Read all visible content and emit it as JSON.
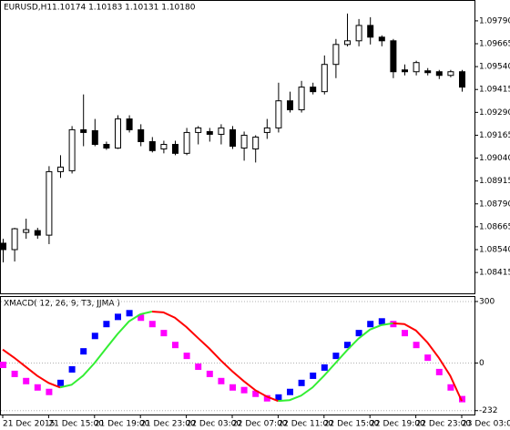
{
  "chart_data": [
    {
      "type": "candlestick",
      "title": "EURUSD,H1",
      "subtitle": "1.10174 1.10183 1.10131 1.10180",
      "open": [
        1.08575,
        1.0854,
        1.08634,
        1.08644,
        1.08619,
        1.08966,
        1.08971,
        1.09195,
        1.0919,
        1.09115,
        1.09095,
        1.09254,
        1.09195,
        1.0913,
        1.0909,
        1.09115,
        1.09066,
        1.0918,
        1.09185,
        1.0917,
        1.09195,
        1.09095,
        1.0909,
        1.0918,
        1.09205,
        1.09353,
        1.09304,
        1.09428,
        1.09403,
        1.09552,
        1.09661,
        1.09681,
        1.09765,
        1.09701,
        1.09681,
        1.09522,
        1.09512,
        1.09517,
        1.09512,
        1.09492,
        1.09512
      ],
      "high": [
        1.08599,
        1.08659,
        1.08709,
        1.08659,
        1.08996,
        1.09056,
        1.09215,
        1.09388,
        1.09254,
        1.0913,
        1.09274,
        1.09274,
        1.09225,
        1.09155,
        1.09135,
        1.09135,
        1.09205,
        1.09215,
        1.09205,
        1.09225,
        1.09215,
        1.09185,
        1.09165,
        1.09254,
        1.09452,
        1.09403,
        1.09462,
        1.09452,
        1.09601,
        1.09691,
        1.0983,
        1.098,
        1.0981,
        1.09711,
        1.09691,
        1.09552,
        1.09572,
        1.09532,
        1.09522,
        1.09522,
        1.09522
      ],
      "low": [
        1.0847,
        1.08475,
        1.08599,
        1.08599,
        1.0857,
        1.08932,
        1.08956,
        1.09105,
        1.09105,
        1.09085,
        1.0909,
        1.0918,
        1.09105,
        1.09071,
        1.09066,
        1.09056,
        1.09056,
        1.09115,
        1.0913,
        1.09115,
        1.0909,
        1.09026,
        1.09016,
        1.09145,
        1.0918,
        1.09289,
        1.09289,
        1.09388,
        1.09388,
        1.09477,
        1.09651,
        1.09651,
        1.09661,
        1.09651,
        1.09477,
        1.09492,
        1.09492,
        1.09492,
        1.09472,
        1.09482,
        1.09403
      ],
      "close": [
        1.0854,
        1.08654,
        1.08649,
        1.08619,
        1.08966,
        1.08991,
        1.09195,
        1.0918,
        1.09115,
        1.09095,
        1.09254,
        1.09195,
        1.0913,
        1.09081,
        1.09115,
        1.09066,
        1.0918,
        1.09205,
        1.0917,
        1.09205,
        1.09105,
        1.09165,
        1.09155,
        1.09205,
        1.09353,
        1.09304,
        1.09428,
        1.09403,
        1.09552,
        1.09661,
        1.09681,
        1.09765,
        1.09701,
        1.09681,
        1.09512,
        1.09512,
        1.09562,
        1.09507,
        1.09492,
        1.09512,
        1.09428
      ],
      "up_color": "#ffffff",
      "down_color": "#000000",
      "ylim": [
        1.08301,
        1.09899
      ],
      "yticks": [
        {
          "value": 1.0979,
          "label": "1.09790"
        },
        {
          "value": 1.09665,
          "label": "1.09665"
        },
        {
          "value": 1.0954,
          "label": "1.09540"
        },
        {
          "value": 1.09415,
          "label": "1.09415"
        },
        {
          "value": 1.0929,
          "label": "1.09290"
        },
        {
          "value": 1.09165,
          "label": "1.09165"
        },
        {
          "value": 1.0904,
          "label": "1.09040"
        },
        {
          "value": 1.08915,
          "label": "1.08915"
        },
        {
          "value": 1.0879,
          "label": "1.08790"
        },
        {
          "value": 1.08665,
          "label": "1.08665"
        },
        {
          "value": 1.0854,
          "label": "1.08540"
        },
        {
          "value": 1.08415,
          "label": "1.08415"
        }
      ],
      "grid": false
    },
    {
      "type": "histogram-line",
      "title": "XMACD( 12, 26, 9, T3, JJMA )",
      "categories": [
        "21 Dec 2015",
        null,
        null,
        null,
        "21 Dec 15:00",
        null,
        null,
        null,
        "21 Dec 19:00",
        null,
        null,
        null,
        "21 Dec 23:00",
        null,
        null,
        null,
        "22 Dec 03:00",
        null,
        null,
        null,
        "22 Dec 07:00",
        null,
        null,
        null,
        "22 Dec 11:00",
        null,
        null,
        null,
        "22 Dec 15:00",
        null,
        null,
        null,
        "22 Dec 19:00",
        null,
        null,
        null,
        "22 Dec 23:00",
        null,
        null,
        null,
        "23 Dec 03:00"
      ],
      "values": [
        -9,
        -53,
        -88,
        -119,
        -141,
        -97,
        -31,
        57,
        132,
        190,
        225,
        243,
        221,
        190,
        146,
        88,
        35,
        -18,
        -53,
        -88,
        -119,
        -132,
        -150,
        -172,
        -168,
        -141,
        -97,
        -62,
        -22,
        35,
        88,
        146,
        190,
        203,
        190,
        146,
        88,
        26,
        -44,
        -119,
        -176
      ],
      "colors": [
        "#ff00ff",
        "#ff00ff",
        "#ff00ff",
        "#ff00ff",
        "#ff00ff",
        "#0000ff",
        "#0000ff",
        "#0000ff",
        "#0000ff",
        "#0000ff",
        "#0000ff",
        "#0000ff",
        "#ff00ff",
        "#ff00ff",
        "#ff00ff",
        "#ff00ff",
        "#ff00ff",
        "#ff00ff",
        "#ff00ff",
        "#ff00ff",
        "#ff00ff",
        "#ff00ff",
        "#ff00ff",
        "#ff00ff",
        "#0000ff",
        "#0000ff",
        "#0000ff",
        "#0000ff",
        "#0000ff",
        "#0000ff",
        "#0000ff",
        "#0000ff",
        "#0000ff",
        "#0000ff",
        "#ff00ff",
        "#ff00ff",
        "#ff00ff",
        "#ff00ff",
        "#ff00ff",
        "#ff00ff",
        "#ff00ff"
      ],
      "series": [
        {
          "color": "#ff0000",
          "values": [
            66,
            26,
            -18,
            -62,
            -97,
            -119,
            null,
            null,
            null,
            null,
            null,
            null,
            null,
            251,
            247,
            221,
            176,
            123,
            71,
            13,
            -40,
            -88,
            -132,
            -163,
            -185,
            null,
            null,
            null,
            null,
            null,
            null,
            null,
            null,
            null,
            194,
            190,
            159,
            101,
            26,
            -62,
            -185
          ]
        },
        {
          "color": "#33ee33",
          "values": [
            null,
            null,
            null,
            null,
            null,
            -119,
            -106,
            -62,
            0,
            71,
            141,
            203,
            238,
            251,
            null,
            null,
            null,
            null,
            null,
            null,
            null,
            null,
            null,
            null,
            -185,
            -181,
            -159,
            -119,
            -62,
            0,
            62,
            119,
            163,
            185,
            194,
            null,
            null,
            null,
            null,
            null,
            null
          ]
        }
      ],
      "ylim": [
        -251,
        322
      ],
      "yticks": [
        300,
        0,
        -232
      ],
      "grid": true
    }
  ]
}
